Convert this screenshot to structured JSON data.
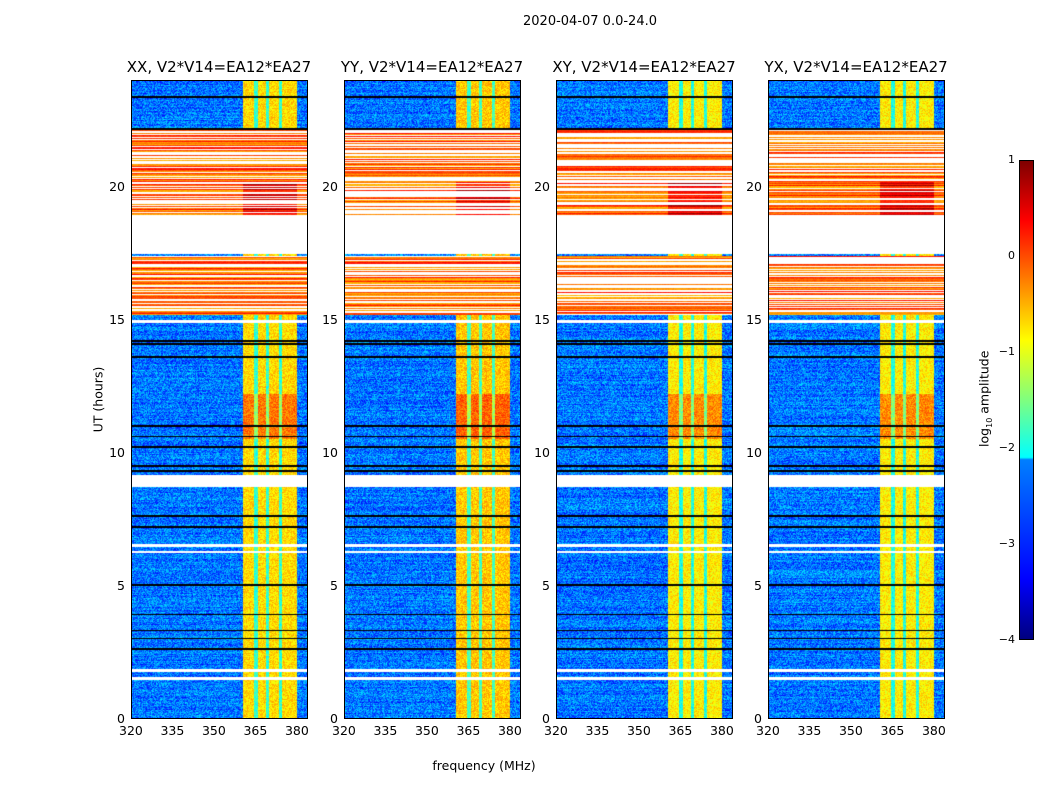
{
  "suptitle": "2020-04-07 0.0-24.0",
  "chart_data": {
    "type": "heatmap",
    "title": "2020-04-07 0.0-24.0",
    "xlabel": "frequency (MHz)",
    "ylabel": "UT (hours)",
    "xlim": [
      320,
      384
    ],
    "ylim": [
      0,
      24
    ],
    "xticks": [
      "320",
      "335",
      "350",
      "365",
      "380"
    ],
    "xtick_values": [
      320,
      335,
      350,
      365,
      380
    ],
    "yticks": [
      "0",
      "5",
      "10",
      "15",
      "20"
    ],
    "ytick_values": [
      0,
      5,
      10,
      15,
      20
    ],
    "panels": [
      {
        "title": "XX, V2*V14=EA12*EA27",
        "band_level": -0.7
      },
      {
        "title": "YY, V2*V14=EA12*EA27",
        "band_level": -0.6
      },
      {
        "title": "XY, V2*V14=EA12*EA27",
        "band_level": -0.8
      },
      {
        "title": "YX, V2*V14=EA12*EA27",
        "band_level": -0.8
      }
    ],
    "background_level": -2.8,
    "rfi_band_mhz": [
      360.5,
      380.5
    ],
    "rfi_band_gaps_mhz": [
      365.3,
      369.5,
      374.2
    ],
    "flagged_hours": [
      [
        1.45,
        1.55
      ],
      [
        1.75,
        1.85
      ],
      [
        6.2,
        6.3
      ],
      [
        6.45,
        6.55
      ],
      [
        8.7,
        9.15
      ],
      [
        14.9,
        15.0
      ],
      [
        17.5,
        18.9
      ]
    ],
    "strong_rfi_hours": [
      [
        15.2,
        17.4
      ],
      [
        18.9,
        22.2
      ]
    ],
    "colorbar": {
      "label": "log10 amplitude",
      "label_base": "log",
      "label_sub": "10",
      "label_rest": " amplitude",
      "ticks": [
        "1",
        "0",
        "−1",
        "−2",
        "−3",
        "−4"
      ],
      "range": [
        -4,
        1
      ],
      "colormap": "jet"
    }
  }
}
